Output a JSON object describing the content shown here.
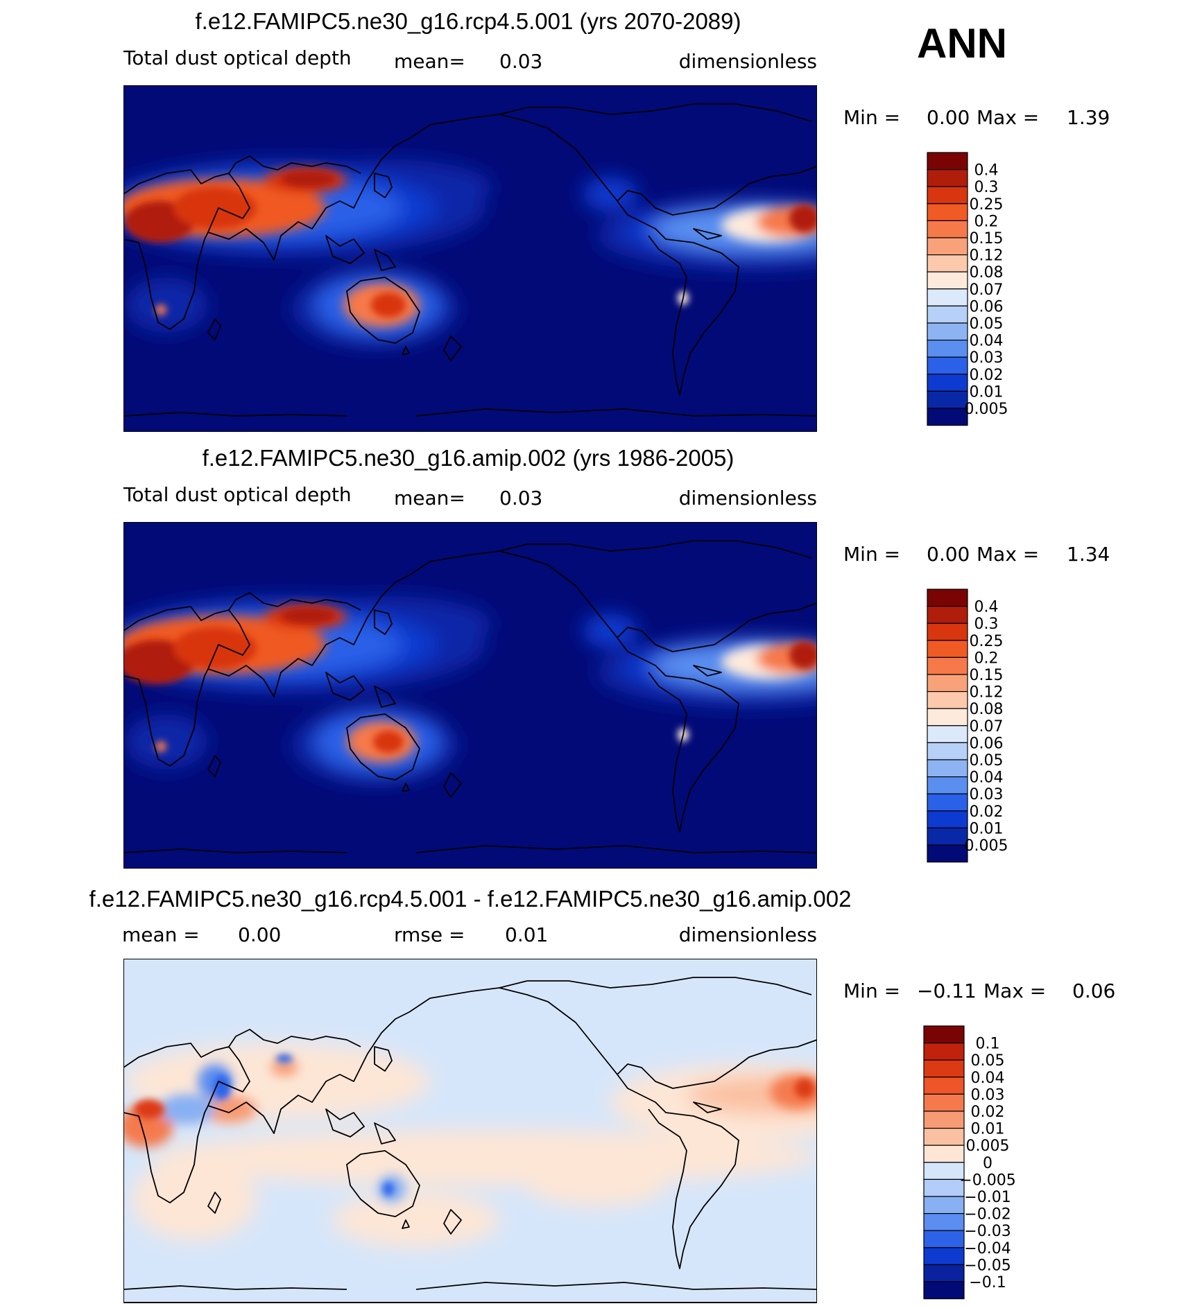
{
  "season": "ANN",
  "chart_data": [
    {
      "type": "heatmap",
      "title": "f.e12.FAMIPC5.ne30_g16.rcp4.5.001 (yrs 2070-2089)",
      "variable": "Total dust optical depth",
      "mean_label": "mean=",
      "mean": "0.03",
      "units": "dimensionless",
      "min_label": "Min =",
      "min": "0.00",
      "max_label": "Max =",
      "max": "1.39",
      "levels": [
        "0.4",
        "0.3",
        "0.25",
        "0.2",
        "0.15",
        "0.12",
        "0.08",
        "0.07",
        "0.06",
        "0.05",
        "0.04",
        "0.03",
        "0.02",
        "0.01",
        "0.005"
      ],
      "colors": [
        "#7a0403",
        "#b01e0b",
        "#d8360f",
        "#f05a24",
        "#f6794a",
        "#f9a27a",
        "#fcc9ac",
        "#feeadc",
        "#dce9fb",
        "#b7d0f8",
        "#8db3f3",
        "#5a8ff0",
        "#2a61e8",
        "#0d3ad0",
        "#0828a8",
        "#020a78"
      ]
    },
    {
      "type": "heatmap",
      "title": "f.e12.FAMIPC5.ne30_g16.amip.002 (yrs 1986-2005)",
      "variable": "Total dust optical depth",
      "mean_label": "mean=",
      "mean": "0.03",
      "units": "dimensionless",
      "min_label": "Min =",
      "min": "0.00",
      "max_label": "Max =",
      "max": "1.34",
      "levels": [
        "0.4",
        "0.3",
        "0.25",
        "0.2",
        "0.15",
        "0.12",
        "0.08",
        "0.07",
        "0.06",
        "0.05",
        "0.04",
        "0.03",
        "0.02",
        "0.01",
        "0.005"
      ],
      "colors": [
        "#7a0403",
        "#b01e0b",
        "#d8360f",
        "#f05a24",
        "#f6794a",
        "#f9a27a",
        "#fcc9ac",
        "#feeadc",
        "#dce9fb",
        "#b7d0f8",
        "#8db3f3",
        "#5a8ff0",
        "#2a61e8",
        "#0d3ad0",
        "#0828a8",
        "#020a78"
      ]
    },
    {
      "type": "heatmap",
      "title": "f.e12.FAMIPC5.ne30_g16.rcp4.5.001 - f.e12.FAMIPC5.ne30_g16.amip.002",
      "mean_label": "mean =",
      "mean": "0.00",
      "rmse_label": "rmse =",
      "rmse": "0.01",
      "units": "dimensionless",
      "min_label": "Min =",
      "min": "−0.11",
      "max_label": "Max =",
      "max": "0.06",
      "levels": [
        "0.1",
        "0.05",
        "0.04",
        "0.03",
        "0.02",
        "0.01",
        "0.005",
        "0",
        "−0.005",
        "−0.01",
        "−0.02",
        "−0.03",
        "−0.04",
        "−0.05",
        "−0.1"
      ],
      "colors": [
        "#7a0403",
        "#c0220b",
        "#dc3a12",
        "#ee5528",
        "#f47a4e",
        "#f79b74",
        "#fac0a1",
        "#fde6d6",
        "#d6e6fa",
        "#b1cdf8",
        "#88b0f3",
        "#5b8ef0",
        "#2c63e8",
        "#0d3ad0",
        "#0a22a0",
        "#020a78"
      ]
    }
  ]
}
